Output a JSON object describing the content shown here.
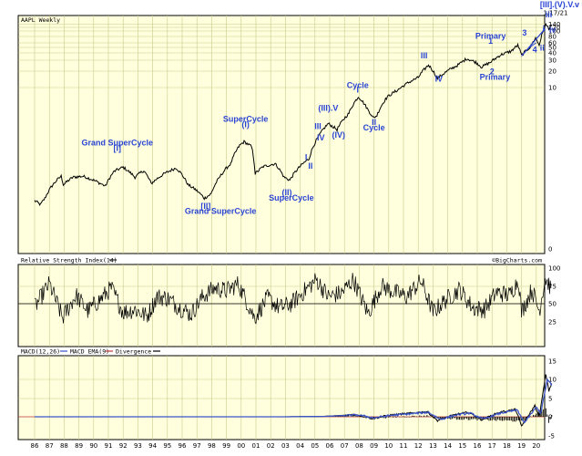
{
  "corner_label": "[III].(V).V.v",
  "date_label": "1/17/21",
  "credit": "©BigCharts.com",
  "chart_data": [
    {
      "type": "line",
      "title": "AAPL Weekly",
      "yscale": "log",
      "y_tick_labels": [
        "140",
        "120",
        "100",
        "80",
        "60",
        "50",
        "40",
        "30",
        "20",
        "10",
        "0"
      ],
      "x_tick_labels": [
        "86",
        "87",
        "88",
        "89",
        "90",
        "91",
        "92",
        "93",
        "94",
        "95",
        "96",
        "97",
        "98",
        "99",
        "00",
        "01",
        "02",
        "03",
        "04",
        "05",
        "06",
        "07",
        "08",
        "09",
        "10",
        "11",
        "12",
        "13",
        "14",
        "15",
        "16",
        "17",
        "18",
        "19",
        "20"
      ],
      "grid": true,
      "series": [
        {
          "anchors": [
            [
              1986.0,
              0.1
            ],
            [
              1986.4,
              0.085
            ],
            [
              1986.7,
              0.11
            ],
            [
              1987.3,
              0.2
            ],
            [
              1987.8,
              0.27
            ],
            [
              1987.95,
              0.19
            ],
            [
              1988.6,
              0.26
            ],
            [
              1989.3,
              0.27
            ],
            [
              1990.0,
              0.23
            ],
            [
              1990.8,
              0.18
            ],
            [
              1991.4,
              0.33
            ],
            [
              1992.0,
              0.39
            ],
            [
              1992.8,
              0.26
            ],
            [
              1993.4,
              0.34
            ],
            [
              1993.9,
              0.2
            ],
            [
              1994.8,
              0.3
            ],
            [
              1995.6,
              0.38
            ],
            [
              1996.4,
              0.19
            ],
            [
              1997.0,
              0.15
            ],
            [
              1997.5,
              0.11
            ],
            [
              1997.95,
              0.13
            ],
            [
              1998.5,
              0.25
            ],
            [
              1999.3,
              0.45
            ],
            [
              1999.9,
              0.95
            ],
            [
              2000.2,
              1.1
            ],
            [
              2000.7,
              0.9
            ],
            [
              2000.95,
              0.3
            ],
            [
              2001.5,
              0.4
            ],
            [
              2002.3,
              0.45
            ],
            [
              2002.9,
              0.26
            ],
            [
              2003.3,
              0.23
            ],
            [
              2003.9,
              0.38
            ],
            [
              2004.6,
              0.55
            ],
            [
              2005.2,
              1.3
            ],
            [
              2005.9,
              2.3
            ],
            [
              2006.5,
              1.8
            ],
            [
              2007.3,
              3.5
            ],
            [
              2007.95,
              6.9
            ],
            [
              2008.6,
              4.0
            ],
            [
              2008.95,
              2.9
            ],
            [
              2009.2,
              3.2
            ],
            [
              2009.9,
              6.8
            ],
            [
              2010.6,
              9.0
            ],
            [
              2011.4,
              12.5
            ],
            [
              2012.0,
              15.0
            ],
            [
              2012.7,
              25.0
            ],
            [
              2013.3,
              14.5
            ],
            [
              2013.9,
              19.0
            ],
            [
              2014.7,
              25.0
            ],
            [
              2015.3,
              32.5
            ],
            [
              2015.9,
              28.0
            ],
            [
              2016.3,
              23.0
            ],
            [
              2016.9,
              28.0
            ],
            [
              2017.6,
              38.0
            ],
            [
              2018.3,
              44.0
            ],
            [
              2018.75,
              56.0
            ],
            [
              2019.0,
              37.0
            ],
            [
              2019.6,
              52.0
            ],
            [
              2019.95,
              75.0
            ],
            [
              2020.2,
              56.0
            ],
            [
              2020.65,
              128.0
            ],
            [
              2020.85,
              112.0
            ],
            [
              2021.05,
              130.0
            ]
          ]
        }
      ],
      "annotations": [
        {
          "text": "Grand SuperCycle",
          "x": 1991.6,
          "y": 0.95
        },
        {
          "text": "[I]",
          "x": 1991.6,
          "y": 0.76
        },
        {
          "text": "SuperCycle",
          "x": 2000.3,
          "y": 2.5
        },
        {
          "text": "(I)",
          "x": 2000.3,
          "y": 2.0
        },
        {
          "text": "[II]",
          "x": 1997.6,
          "y": 0.072
        },
        {
          "text": "Grand SuperCycle",
          "x": 1998.6,
          "y": 0.058
        },
        {
          "text": "(II)",
          "x": 2003.1,
          "y": 0.125
        },
        {
          "text": "SuperCycle",
          "x": 2003.4,
          "y": 0.1
        },
        {
          "text": "(III).V",
          "x": 2005.9,
          "y": 3.9
        },
        {
          "text": "III",
          "x": 2005.2,
          "y": 1.85
        },
        {
          "text": "IV",
          "x": 2005.4,
          "y": 1.15
        },
        {
          "text": "(IV)",
          "x": 2006.6,
          "y": 1.3
        },
        {
          "text": "I",
          "x": 2004.4,
          "y": 0.52
        },
        {
          "text": "II",
          "x": 2004.7,
          "y": 0.37
        },
        {
          "text": "Cycle",
          "x": 2007.9,
          "y": 9.8
        },
        {
          "text": "I",
          "x": 2007.9,
          "y": 8.1
        },
        {
          "text": "II",
          "x": 2009.0,
          "y": 2.2
        },
        {
          "text": "Cycle",
          "x": 2009.0,
          "y": 1.75
        },
        {
          "text": "III",
          "x": 2012.4,
          "y": 33.0
        },
        {
          "text": "IV",
          "x": 2013.4,
          "y": 12.7
        },
        {
          "text": "Primary",
          "x": 2016.9,
          "y": 73.0
        },
        {
          "text": "1",
          "x": 2016.9,
          "y": 59.0
        },
        {
          "text": "2",
          "x": 2017.0,
          "y": 17.0
        },
        {
          "text": "Primary",
          "x": 2017.2,
          "y": 13.6
        },
        {
          "text": "3",
          "x": 2019.2,
          "y": 83.0
        },
        {
          "text": "4",
          "x": 2019.9,
          "y": 42.0
        },
        {
          "text": "ii",
          "x": 2020.4,
          "y": 45.0
        },
        {
          "text": "i",
          "x": 2020.5,
          "y": 99.0
        },
        {
          "text": "iii",
          "x": 2020.85,
          "y": 175.0
        },
        {
          "text": "iv",
          "x": 2021.1,
          "y": 95.0
        }
      ]
    },
    {
      "type": "line",
      "title": "Relative Strength Index(14)",
      "y_tick_labels": [
        "100",
        "75",
        "50",
        "25"
      ],
      "reference_line": 50,
      "series": [
        {
          "anchors": [
            [
              1986.0,
              45
            ],
            [
              1987.0,
              78
            ],
            [
              1987.9,
              30
            ],
            [
              1988.8,
              62
            ],
            [
              1989.6,
              40
            ],
            [
              1990.4,
              55
            ],
            [
              1991.2,
              72
            ],
            [
              1992.0,
              38
            ],
            [
              1992.8,
              42
            ],
            [
              1993.6,
              32
            ],
            [
              1994.3,
              60
            ],
            [
              1995.0,
              58
            ],
            [
              1995.8,
              45
            ],
            [
              1996.6,
              35
            ],
            [
              1997.4,
              60
            ],
            [
              1998.2,
              72
            ],
            [
              1999.0,
              68
            ],
            [
              1999.8,
              78
            ],
            [
              2000.9,
              30
            ],
            [
              2001.8,
              58
            ],
            [
              2002.6,
              44
            ],
            [
              2003.4,
              50
            ],
            [
              2004.3,
              68
            ],
            [
              2005.1,
              84
            ],
            [
              2005.9,
              60
            ],
            [
              2006.8,
              65
            ],
            [
              2007.6,
              84
            ],
            [
              2008.6,
              36
            ],
            [
              2009.5,
              75
            ],
            [
              2010.4,
              66
            ],
            [
              2011.2,
              60
            ],
            [
              2012.2,
              82
            ],
            [
              2013.0,
              38
            ],
            [
              2013.9,
              56
            ],
            [
              2014.8,
              70
            ],
            [
              2015.7,
              44
            ],
            [
              2016.5,
              42
            ],
            [
              2017.3,
              66
            ],
            [
              2018.2,
              62
            ],
            [
              2018.8,
              84
            ],
            [
              2019.0,
              38
            ],
            [
              2019.7,
              70
            ],
            [
              2020.2,
              40
            ],
            [
              2020.6,
              86
            ],
            [
              2021.0,
              72
            ]
          ]
        }
      ]
    },
    {
      "type": "line",
      "title": "MACD(12,26)",
      "legend": [
        "MACD EMA(9)",
        "Divergence"
      ],
      "y_tick_labels": [
        "15",
        "10",
        "5",
        "0",
        "-5"
      ],
      "zero_line": 0,
      "series": [
        {
          "name": "MACD(12,26)",
          "color": "#000000",
          "anchors": [
            [
              1986.0,
              0
            ],
            [
              2003.0,
              0.0
            ],
            [
              2005.5,
              0.1
            ],
            [
              2007.8,
              0.6
            ],
            [
              2008.9,
              -0.5
            ],
            [
              2010.0,
              0.4
            ],
            [
              2012.6,
              1.4
            ],
            [
              2013.3,
              -1.0
            ],
            [
              2014.5,
              0.6
            ],
            [
              2015.4,
              1.2
            ],
            [
              2016.3,
              -0.8
            ],
            [
              2017.5,
              1.2
            ],
            [
              2018.6,
              2.0
            ],
            [
              2019.0,
              -2.5
            ],
            [
              2019.9,
              3.0
            ],
            [
              2020.2,
              0.0
            ],
            [
              2020.65,
              11.5
            ],
            [
              2020.85,
              7.0
            ],
            [
              2021.05,
              9.0
            ]
          ]
        },
        {
          "name": "MACD EMA(9)",
          "color": "#3a54c8",
          "anchors": [
            [
              1986.0,
              0
            ],
            [
              2003.0,
              0.0
            ],
            [
              2005.6,
              0.1
            ],
            [
              2007.9,
              0.5
            ],
            [
              2009.0,
              -0.3
            ],
            [
              2010.2,
              0.4
            ],
            [
              2012.7,
              1.2
            ],
            [
              2013.5,
              -0.7
            ],
            [
              2014.6,
              0.5
            ],
            [
              2015.5,
              1.0
            ],
            [
              2016.4,
              -0.6
            ],
            [
              2017.6,
              1.0
            ],
            [
              2018.7,
              1.8
            ],
            [
              2019.2,
              -1.6
            ],
            [
              2020.0,
              2.6
            ],
            [
              2020.3,
              1.0
            ],
            [
              2020.75,
              10.0
            ],
            [
              2021.05,
              8.5
            ]
          ]
        },
        {
          "name": "Divergence",
          "color": "#000000",
          "anchors": [
            [
              1986.0,
              0
            ],
            [
              2007.8,
              0.2
            ],
            [
              2008.9,
              -0.3
            ],
            [
              2012.6,
              0.3
            ],
            [
              2013.3,
              -0.4
            ],
            [
              2019.0,
              -1.2
            ],
            [
              2019.9,
              0.6
            ],
            [
              2020.65,
              2.5
            ],
            [
              2020.85,
              -1.5
            ],
            [
              2021.05,
              0.5
            ]
          ]
        }
      ]
    }
  ]
}
